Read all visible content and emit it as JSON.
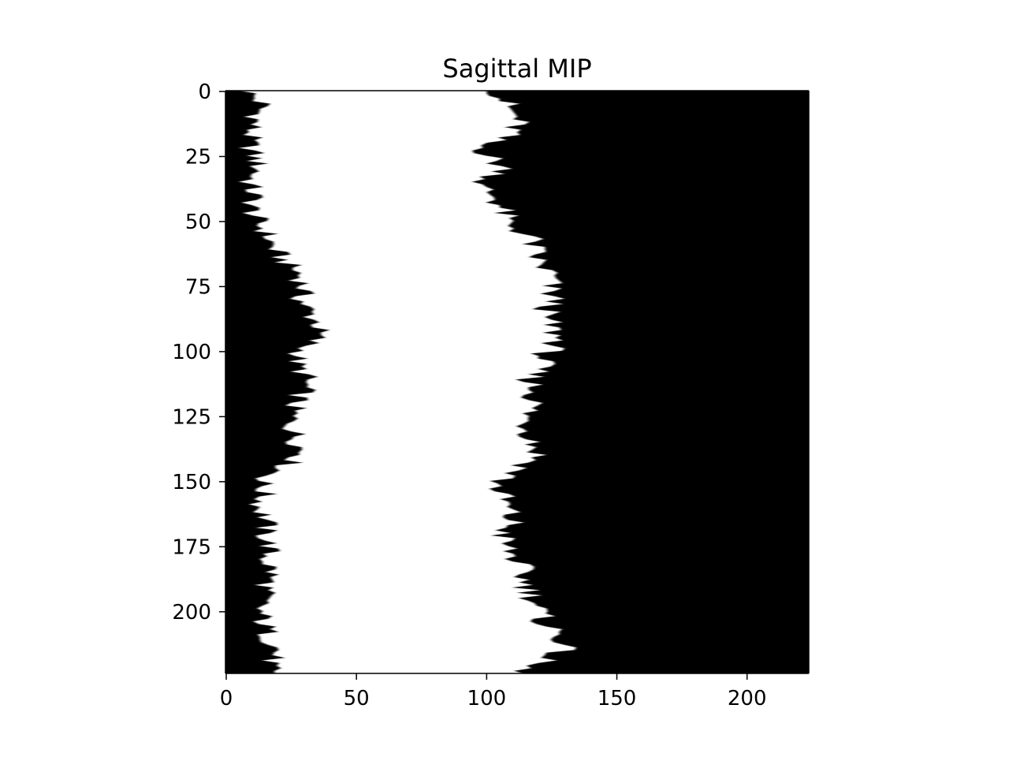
{
  "chart_data": {
    "type": "heatmap",
    "title": "Sagittal MIP",
    "xlabel": "",
    "ylabel": "",
    "xlim": [
      0,
      224
    ],
    "ylim": [
      224,
      0
    ],
    "grid": false,
    "colormap": "gray",
    "x_ticks": [
      0,
      50,
      100,
      150,
      200
    ],
    "x_tick_labels": [
      "0",
      "50",
      "100",
      "150",
      "200"
    ],
    "y_ticks": [
      0,
      25,
      50,
      75,
      100,
      125,
      150,
      175,
      200
    ],
    "y_tick_labels": [
      "0",
      "25",
      "50",
      "75",
      "100",
      "125",
      "150",
      "175",
      "200"
    ],
    "bright_region": {
      "description": "white band per row, columns from left boundary to right boundary",
      "rows": [
        0,
        5,
        10,
        15,
        20,
        25,
        30,
        35,
        40,
        45,
        50,
        55,
        60,
        65,
        70,
        75,
        80,
        85,
        90,
        95,
        100,
        105,
        110,
        115,
        120,
        125,
        130,
        135,
        140,
        145,
        150,
        155,
        160,
        165,
        170,
        175,
        180,
        185,
        190,
        195,
        200,
        205,
        210,
        215,
        223
      ],
      "left_boundary": [
        8,
        14,
        12,
        10,
        9,
        11,
        13,
        9,
        11,
        10,
        12,
        16,
        18,
        22,
        28,
        30,
        29,
        32,
        36,
        35,
        29,
        27,
        31,
        30,
        27,
        25,
        26,
        28,
        30,
        22,
        14,
        15,
        13,
        16,
        15,
        17,
        16,
        18,
        16,
        14,
        13,
        15,
        17,
        20,
        16
      ],
      "right_boundary": [
        106,
        108,
        112,
        110,
        98,
        102,
        108,
        96,
        104,
        106,
        108,
        117,
        118,
        120,
        125,
        124,
        126,
        122,
        125,
        128,
        123,
        120,
        117,
        119,
        118,
        115,
        117,
        119,
        120,
        112,
        104,
        106,
        108,
        110,
        106,
        108,
        112,
        114,
        116,
        119,
        120,
        124,
        130,
        128,
        110
      ]
    },
    "colors": {
      "background_region": "#000000",
      "bright_region": "#ffffff"
    }
  }
}
